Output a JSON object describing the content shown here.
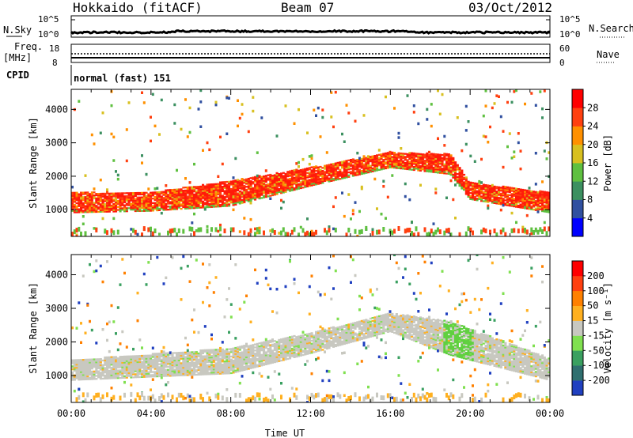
{
  "header": {
    "radar": "Hokkaido (fitACF)",
    "beam": "Beam 07",
    "date": "03/Oct/2012"
  },
  "status_panels": {
    "nsky_label": "N.Sky",
    "nsky_ticks": [
      "10^5",
      "10^0"
    ],
    "nsearch_label": "N.Search",
    "nsearch_ticks": [
      "10^5",
      "10^0"
    ],
    "freq_label_1": "Freq.",
    "freq_label_2": "[MHz]",
    "freq_ticks": [
      "18",
      "8"
    ],
    "nave_label": "Nave",
    "nave_ticks": [
      "60",
      "0"
    ],
    "cpid_label": "CPID",
    "cpid_value": "normal (fast) 151"
  },
  "chart_data": [
    {
      "type": "heatmap",
      "title": "",
      "ylabel": "Slant Range [km]",
      "ylim": [
        200,
        4600
      ],
      "yticks": [
        "1000",
        "2000",
        "3000",
        "4000"
      ],
      "xlabel": "",
      "xlim": [
        0,
        24
      ],
      "colorbar": {
        "label": "Power [dB]",
        "ticks": [
          "4",
          "8",
          "12",
          "16",
          "20",
          "24",
          "28"
        ],
        "range": [
          0,
          32
        ],
        "colors": [
          "#0000ff",
          "#3050a0",
          "#3c9060",
          "#5fc040",
          "#d8c020",
          "#ff9000",
          "#ff4010",
          "#ff0000"
        ]
      },
      "dominant_band": [
        {
          "time": 0,
          "range": [
            900,
            1500
          ]
        },
        {
          "time": 4,
          "range": [
            950,
            1500
          ]
        },
        {
          "time": 8,
          "range": [
            1100,
            1850
          ]
        },
        {
          "time": 12,
          "range": [
            1700,
            2250
          ]
        },
        {
          "time": 16,
          "range": [
            2250,
            2700
          ]
        },
        {
          "time": 19,
          "range": [
            2050,
            2650
          ]
        },
        {
          "time": 20,
          "range": [
            1300,
            1800
          ]
        },
        {
          "time": 24,
          "range": [
            900,
            1500
          ]
        }
      ]
    },
    {
      "type": "heatmap",
      "title": "",
      "ylabel": "Slant Range [km]",
      "ylim": [
        200,
        4600
      ],
      "yticks": [
        "1000",
        "2000",
        "3000",
        "4000"
      ],
      "xlabel": "Time UT",
      "xticks": [
        "00:00",
        "04:00",
        "08:00",
        "12:00",
        "16:00",
        "20:00",
        "00:00"
      ],
      "colorbar": {
        "label": "Velocity [m s⁻¹]",
        "ticks": [
          "200",
          "100",
          "50",
          "15",
          "-15",
          "-50",
          "-100",
          "-200"
        ],
        "range": [
          -250,
          250
        ],
        "colors": [
          "#2040c0",
          "#2f6f6f",
          "#3aa060",
          "#80e050",
          "#c8c8c0",
          "#ffb020",
          "#ff8000",
          "#ff4010",
          "#ff0000"
        ]
      },
      "dominant_band": [
        {
          "time": 0,
          "range": [
            850,
            1450
          ]
        },
        {
          "time": 8,
          "range": [
            1050,
            1800
          ]
        },
        {
          "time": 12,
          "range": [
            1650,
            2250
          ]
        },
        {
          "time": 16,
          "range": [
            2300,
            2850
          ]
        },
        {
          "time": 19,
          "range": [
            1600,
            2600
          ]
        },
        {
          "time": 24,
          "range": [
            850,
            1500
          ]
        }
      ]
    }
  ]
}
